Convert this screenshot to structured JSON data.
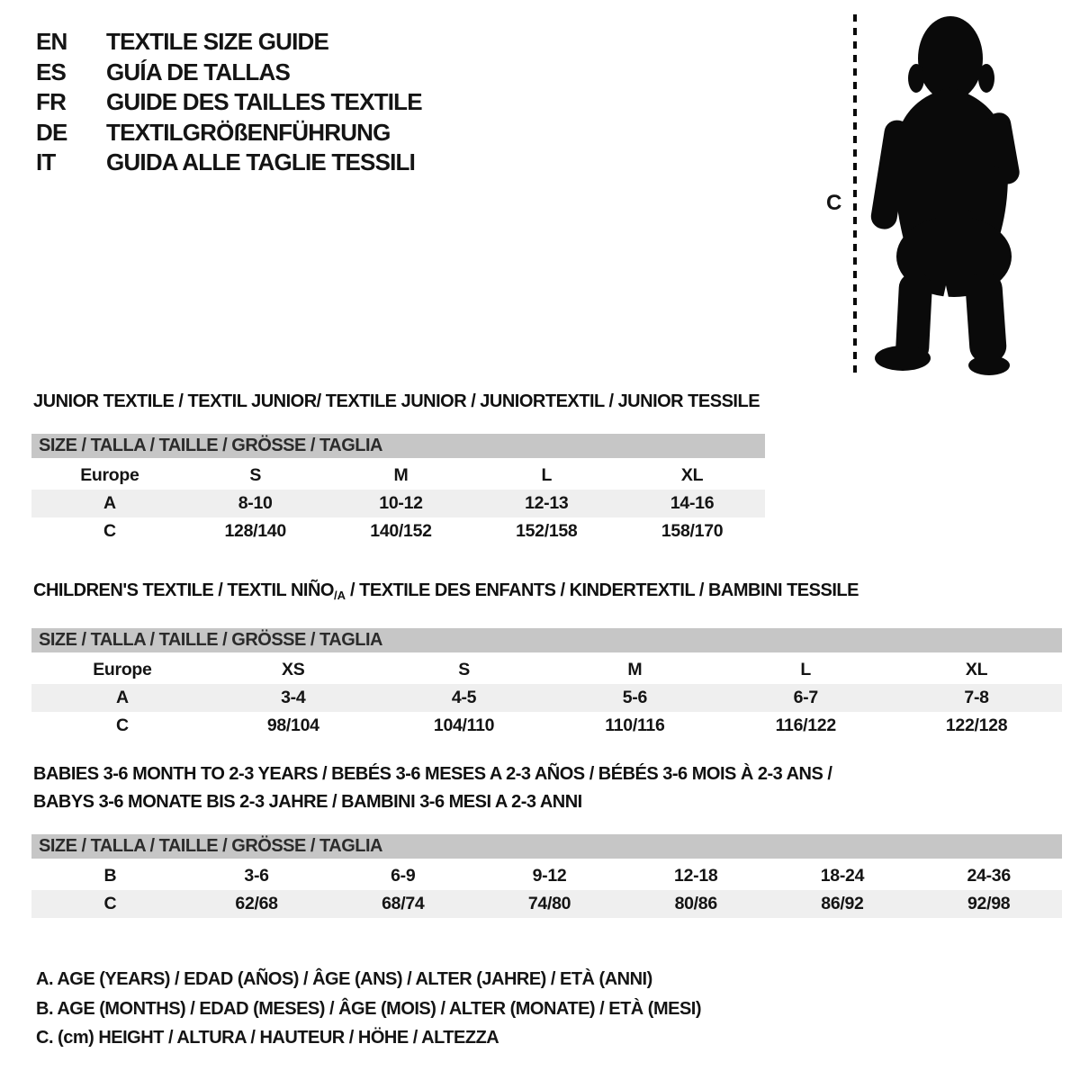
{
  "colors": {
    "header_bar": "#c6c6c6",
    "shaded_row": "#efefef",
    "text": "#141414",
    "silhouette": "#0a0a0a"
  },
  "language_header": {
    "items": [
      {
        "code": "EN",
        "label": "TEXTILE SIZE GUIDE"
      },
      {
        "code": "ES",
        "label": "GUÍA DE TALLAS"
      },
      {
        "code": "FR",
        "label": "GUIDE DES TAILLES TEXTILE"
      },
      {
        "code": "DE",
        "label": "TEXTILGRÖßENFÜHRUNG"
      },
      {
        "code": "IT",
        "label": "GUIDA ALLE TAGLIE TESSILI"
      }
    ]
  },
  "figure": {
    "label": "C"
  },
  "sections": [
    {
      "title_lines": [
        [
          {
            "text": "JUNIOR TEXTILE / TEXTIL JUNIOR/ TEXTILE JUNIOR / JUNIORTEXTIL / JUNIOR TESSILE"
          }
        ]
      ],
      "size_header": "SIZE / TALLA / TAILLE / GRÖSSE / TAGLIA",
      "rows": [
        {
          "label": "Europe",
          "shaded": false,
          "values": [
            "S",
            "M",
            "L",
            "XL"
          ]
        },
        {
          "label": "A",
          "shaded": true,
          "values": [
            "8-10",
            "10-12",
            "12-13",
            "14-16"
          ]
        },
        {
          "label": "C",
          "shaded": false,
          "values": [
            "128/140",
            "140/152",
            "152/158",
            "158/170"
          ]
        }
      ]
    },
    {
      "title_lines": [
        [
          {
            "text": "CHILDREN'S TEXTILE / TEXTIL NIÑO"
          },
          {
            "text": "/A",
            "sub": true
          },
          {
            "text": " / TEXTILE DES ENFANTS / KINDERTEXTIL / BAMBINI TESSILE"
          }
        ]
      ],
      "size_header": "SIZE / TALLA / TAILLE / GRÖSSE / TAGLIA",
      "rows": [
        {
          "label": "Europe",
          "shaded": false,
          "values": [
            "XS",
            "S",
            "M",
            "L",
            "XL"
          ]
        },
        {
          "label": "A",
          "shaded": true,
          "values": [
            "3-4",
            "4-5",
            "5-6",
            "6-7",
            "7-8"
          ]
        },
        {
          "label": "C",
          "shaded": false,
          "values": [
            "98/104",
            "104/110",
            "110/116",
            "116/122",
            "122/128"
          ]
        }
      ]
    },
    {
      "title_lines": [
        [
          {
            "text": "BABIES 3-6 MONTH TO 2-3 YEARS / BEBÉS 3-6 MESES A 2-3 AÑOS / BÉBÉS 3-6 MOIS À 2-3 ANS /"
          }
        ],
        [
          {
            "text": "BABYS 3-6 MONATE BIS 2-3 JAHRE / BAMBINI 3-6 MESI A 2-3 ANNI"
          }
        ]
      ],
      "size_header": "SIZE / TALLA / TAILLE / GRÖSSE / TAGLIA",
      "rows": [
        {
          "label": "B",
          "shaded": false,
          "values": [
            "3-6",
            "6-9",
            "9-12",
            "12-18",
            "18-24",
            "24-36"
          ]
        },
        {
          "label": "C",
          "shaded": true,
          "values": [
            "62/68",
            "68/74",
            "74/80",
            "80/86",
            "86/92",
            "92/98"
          ]
        }
      ]
    }
  ],
  "legend": {
    "lines": [
      "A. AGE (YEARS) / EDAD (AÑOS) / ÂGE (ANS) / ALTER (JAHRE) / ETÀ (ANNI)",
      "B. AGE (MONTHS) / EDAD (MESES) / ÂGE (MOIS) / ALTER (MONATE) / ETÀ (MESI)",
      "C. (cm) HEIGHT / ALTURA / HAUTEUR / HÖHE / ALTEZZA"
    ]
  }
}
